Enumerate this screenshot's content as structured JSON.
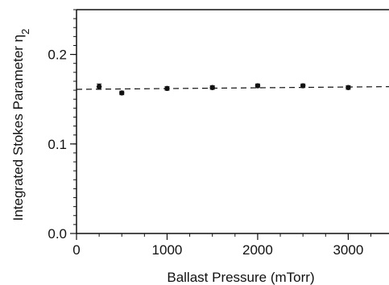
{
  "chart_data": {
    "type": "scatter",
    "xlabel": "Ballast Pressure  (mTorr)",
    "ylabel_main": "Integrated Stokes Parameter η",
    "ylabel_sub": "2",
    "xlim": [
      0,
      3450
    ],
    "ylim": [
      0,
      0.25
    ],
    "xticks": [
      0,
      1000,
      2000,
      3000
    ],
    "xtick_labels": [
      "0",
      "1000",
      "2000",
      "3000"
    ],
    "yticks": [
      0.0,
      0.1,
      0.2
    ],
    "ytick_labels": [
      "0.0",
      "0.1",
      "0.2"
    ],
    "x_minor_step": 250,
    "y_minor_step": 0.01,
    "grid": false,
    "points": [
      {
        "x": 250,
        "y": 0.164,
        "err": 0.003
      },
      {
        "x": 500,
        "y": 0.157,
        "err": 0.002
      },
      {
        "x": 1000,
        "y": 0.162,
        "err": 0.002
      },
      {
        "x": 1500,
        "y": 0.163,
        "err": 0.002
      },
      {
        "x": 2000,
        "y": 0.165,
        "err": 0.002
      },
      {
        "x": 2500,
        "y": 0.165,
        "err": 0.002
      },
      {
        "x": 3000,
        "y": 0.163,
        "err": 0.002
      }
    ],
    "fit_line": {
      "style": "dashed",
      "y_start": 0.161,
      "y_end": 0.164
    }
  }
}
